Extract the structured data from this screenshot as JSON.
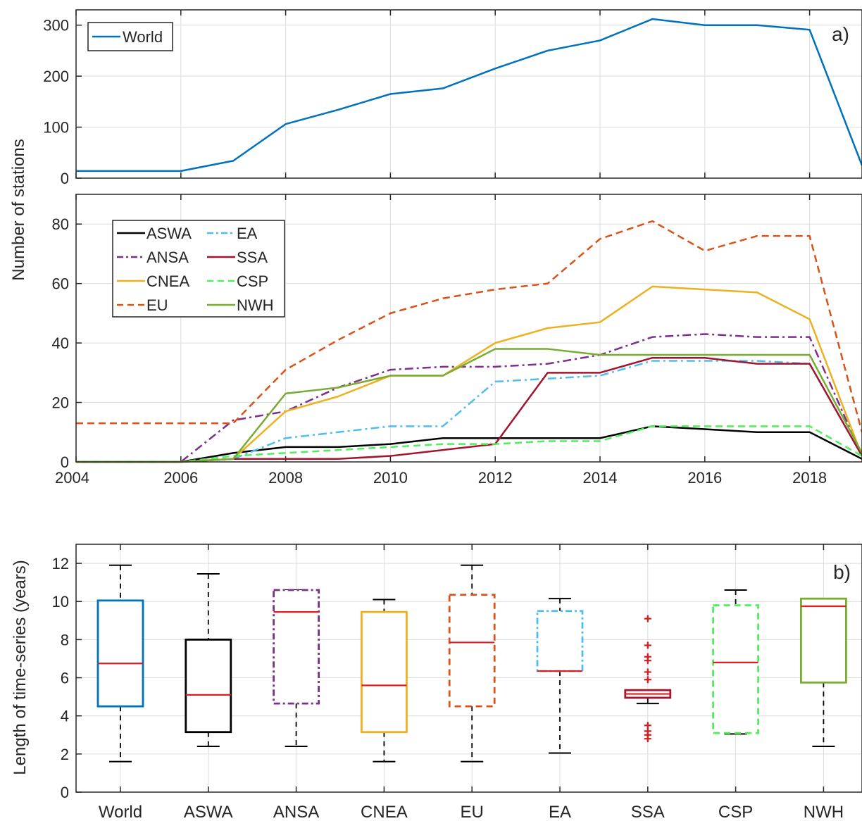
{
  "shared": {
    "ylabel_a": "Number of stations",
    "ylabel_b": "Length of time-series (years)",
    "panel_a_label": "a)",
    "panel_b_label": "b)"
  },
  "chart_data": [
    {
      "type": "line",
      "panel": "a-top",
      "x": [
        2004,
        2005,
        2006,
        2007,
        2008,
        2009,
        2010,
        2011,
        2012,
        2013,
        2014,
        2015,
        2016,
        2017,
        2018,
        2019
      ],
      "xlim": [
        2004,
        2019
      ],
      "ylim": [
        0,
        330
      ],
      "yticks": [
        0,
        100,
        200,
        300
      ],
      "grid": true,
      "legend_position": "top-left",
      "series": [
        {
          "name": "World",
          "color": "#0072BD",
          "style": "solid",
          "values": [
            14,
            14,
            14,
            34,
            106,
            134,
            165,
            176,
            215,
            250,
            270,
            312,
            300,
            300,
            291,
            25
          ]
        }
      ]
    },
    {
      "type": "line",
      "panel": "a-bottom",
      "x": [
        2004,
        2005,
        2006,
        2007,
        2008,
        2009,
        2010,
        2011,
        2012,
        2013,
        2014,
        2015,
        2016,
        2017,
        2018,
        2019
      ],
      "xlim": [
        2004,
        2019
      ],
      "xticks": [
        2004,
        2006,
        2008,
        2010,
        2012,
        2014,
        2016,
        2018
      ],
      "ylim": [
        0,
        90
      ],
      "yticks": [
        0,
        20,
        40,
        60,
        80
      ],
      "grid": true,
      "legend_position": "top-left",
      "series": [
        {
          "name": "ASWA",
          "color": "#000000",
          "style": "solid",
          "values": [
            0,
            0,
            0,
            3,
            5,
            5,
            6,
            8,
            8,
            8,
            8,
            12,
            11,
            10,
            10,
            1
          ]
        },
        {
          "name": "ANSA",
          "color": "#7E2F8E",
          "style": "dashdot",
          "values": [
            0,
            0,
            0,
            14,
            17,
            25,
            31,
            32,
            32,
            33,
            36,
            42,
            43,
            42,
            42,
            2
          ]
        },
        {
          "name": "CNEA",
          "color": "#EDB120",
          "style": "solid",
          "values": [
            0,
            0,
            0,
            1,
            17,
            22,
            29,
            29,
            40,
            45,
            47,
            59,
            58,
            57,
            48,
            2
          ]
        },
        {
          "name": "EU",
          "color": "#D95319",
          "style": "dashed",
          "values": [
            13,
            13,
            13,
            13,
            31,
            41,
            50,
            55,
            58,
            60,
            75,
            81,
            71,
            76,
            76,
            10
          ]
        },
        {
          "name": "EA",
          "color": "#4DBEEE",
          "style": "dashdot",
          "values": [
            0,
            0,
            0,
            1,
            8,
            10,
            12,
            12,
            27,
            28,
            29,
            34,
            34,
            34,
            33,
            2
          ]
        },
        {
          "name": "SSA",
          "color": "#A2142F",
          "style": "solid",
          "values": [
            0,
            0,
            0,
            1,
            1,
            1,
            2,
            4,
            6,
            30,
            30,
            35,
            35,
            33,
            33,
            2
          ]
        },
        {
          "name": "CSP",
          "color": "#4CF05A",
          "style": "dashed",
          "values": [
            0,
            0,
            0,
            2,
            3,
            4,
            5,
            6,
            6,
            7,
            7,
            12,
            12,
            12,
            12,
            2
          ]
        },
        {
          "name": "NWH",
          "color": "#77AC30",
          "style": "solid",
          "values": [
            0,
            0,
            0,
            1,
            23,
            25,
            29,
            29,
            38,
            38,
            36,
            36,
            36,
            36,
            36,
            3
          ]
        }
      ]
    },
    {
      "type": "box",
      "panel": "b",
      "categories": [
        "World",
        "ASWA",
        "ANSA",
        "CNEA",
        "EU",
        "EA",
        "SSA",
        "CSP",
        "NWH"
      ],
      "ylim": [
        0,
        13
      ],
      "yticks": [
        0,
        2,
        4,
        6,
        8,
        10,
        12
      ],
      "grid": true,
      "median_color": "#E41A1C",
      "boxes": [
        {
          "category": "World",
          "color": "#0072BD",
          "style": "solid",
          "min": 1.6,
          "q1": 4.5,
          "median": 6.75,
          "q3": 10.05,
          "max": 11.9,
          "outliers": []
        },
        {
          "category": "ASWA",
          "color": "#000000",
          "style": "solid",
          "min": 2.4,
          "q1": 3.15,
          "median": 5.1,
          "q3": 8.0,
          "max": 11.45,
          "outliers": []
        },
        {
          "category": "ANSA",
          "color": "#7E2F8E",
          "style": "dashdot",
          "min": 2.4,
          "q1": 4.65,
          "median": 9.45,
          "q3": 10.6,
          "max": 10.6,
          "outliers": []
        },
        {
          "category": "CNEA",
          "color": "#EDB120",
          "style": "solid",
          "min": 1.6,
          "q1": 3.15,
          "median": 5.6,
          "q3": 9.45,
          "max": 10.1,
          "outliers": []
        },
        {
          "category": "EU",
          "color": "#D95319",
          "style": "dashed",
          "min": 1.6,
          "q1": 4.5,
          "median": 7.85,
          "q3": 10.35,
          "max": 11.9,
          "outliers": []
        },
        {
          "category": "EA",
          "color": "#4DBEEE",
          "style": "dashdot",
          "min": 2.05,
          "q1": 6.35,
          "median": 6.35,
          "q3": 9.5,
          "max": 10.15,
          "outliers": []
        },
        {
          "category": "SSA",
          "color": "#A2142F",
          "style": "solid",
          "min": 4.65,
          "q1": 4.95,
          "median": 5.15,
          "q3": 5.35,
          "max": 5.35,
          "outliers": [
            9.1,
            7.7,
            7.1,
            6.9,
            6.3,
            5.9,
            3.5,
            3.2,
            3.0,
            2.8
          ]
        },
        {
          "category": "CSP",
          "color": "#4CF05A",
          "style": "dashed",
          "min": 3.05,
          "q1": 3.1,
          "median": 6.8,
          "q3": 9.8,
          "max": 10.6,
          "outliers": []
        },
        {
          "category": "NWH",
          "color": "#77AC30",
          "style": "solid",
          "min": 2.4,
          "q1": 5.75,
          "median": 9.75,
          "q3": 10.15,
          "max": 10.15,
          "outliers": []
        }
      ]
    }
  ]
}
